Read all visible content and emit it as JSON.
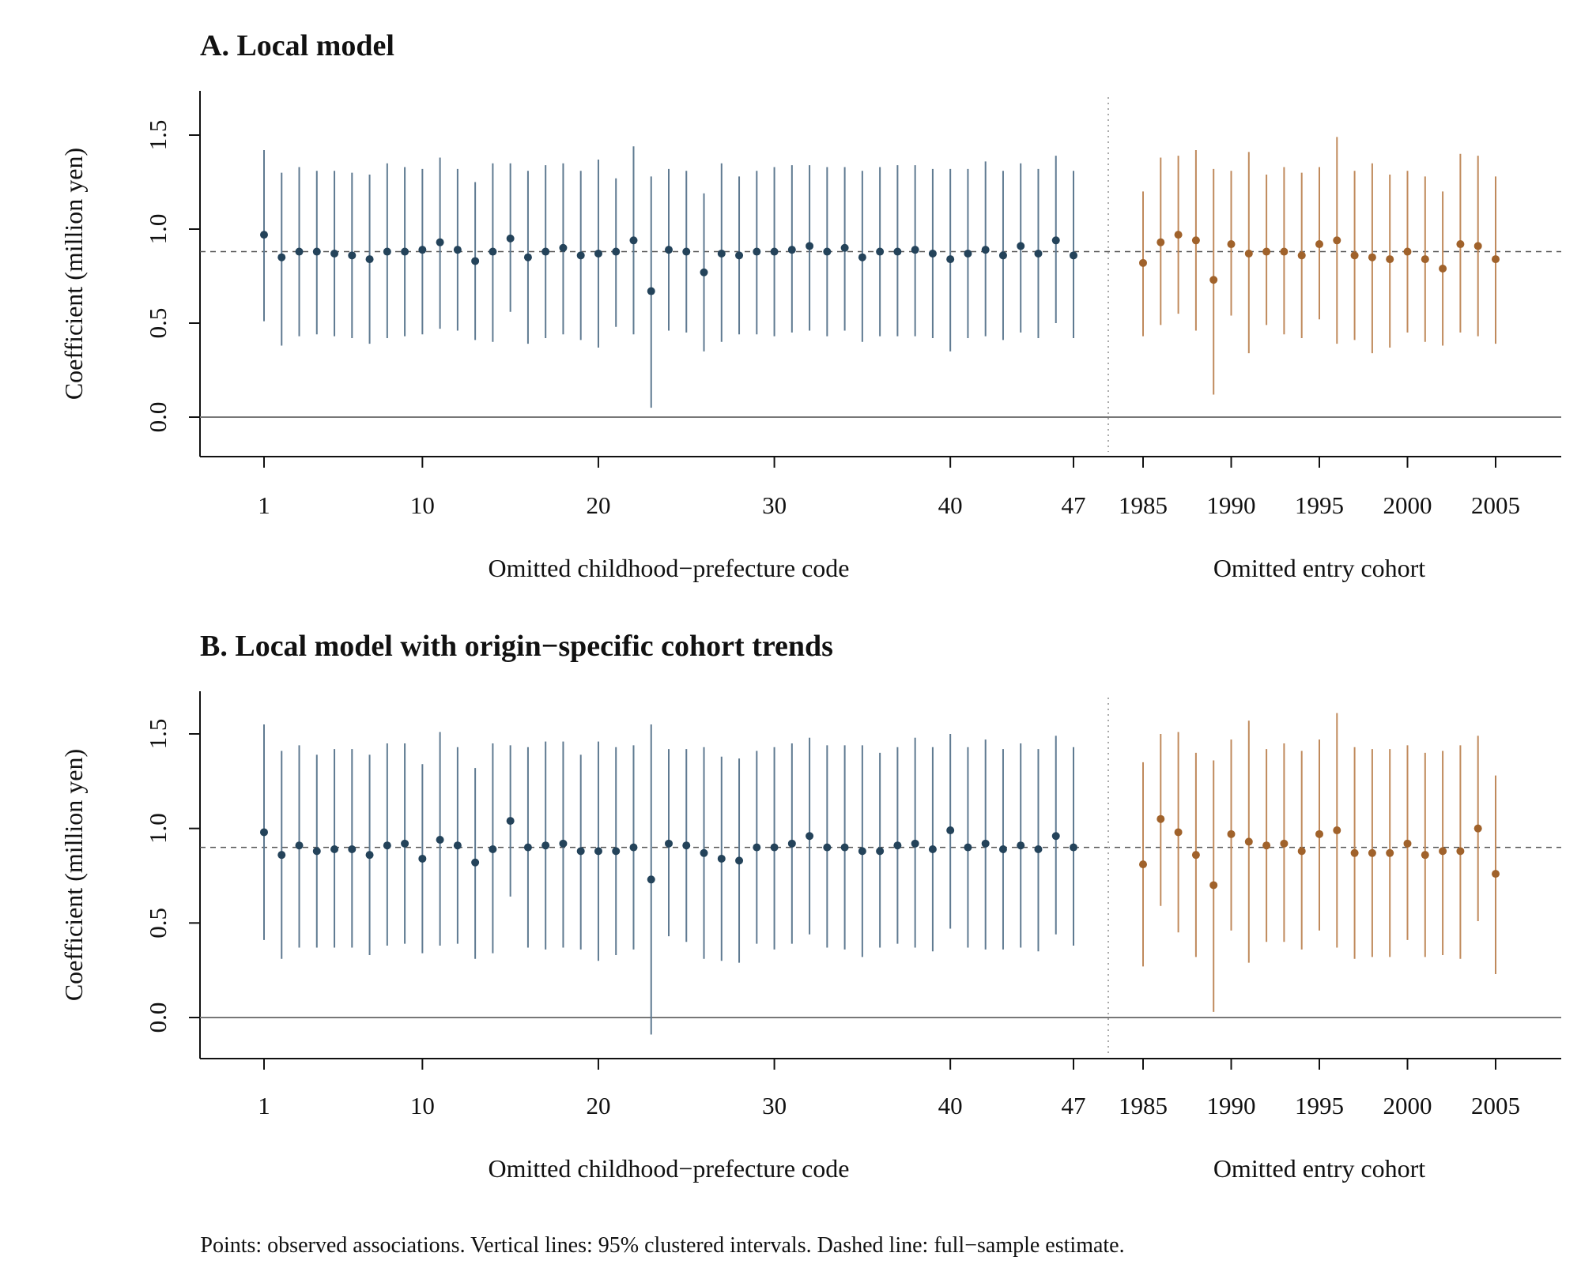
{
  "caption": "Points: observed associations. Vertical lines: 95% clustered intervals. Dashed line: full−sample estimate.",
  "colors": {
    "prefecture": "#24435a",
    "prefecture_line": "#5f7a91",
    "cohort": "#a0622b",
    "cohort_line": "#c08a5c",
    "axis": "#111111",
    "zero": "#777777",
    "ref": "#555555"
  },
  "chart_data": [
    {
      "type": "scatter",
      "title": "A. Local model",
      "ylabel": "Coefficient (million yen)",
      "ylim": [
        -0.2,
        1.72
      ],
      "yticks": [
        0.0,
        0.5,
        1.0,
        1.5
      ],
      "ytick_labels": [
        "0.0",
        "0.5",
        "1.0",
        "1.5"
      ],
      "reference": 0.88,
      "grid": false,
      "prefecture": {
        "xlabel": "Omitted childhood−prefecture code",
        "xticks": [
          1,
          10,
          20,
          30,
          40,
          47
        ],
        "xtick_labels": [
          "1",
          "10",
          "20",
          "30",
          "40",
          "47"
        ],
        "x": [
          1,
          2,
          3,
          4,
          5,
          6,
          7,
          8,
          9,
          10,
          11,
          12,
          13,
          14,
          15,
          16,
          17,
          18,
          19,
          20,
          21,
          22,
          23,
          24,
          25,
          26,
          27,
          28,
          29,
          30,
          31,
          32,
          33,
          34,
          35,
          36,
          37,
          38,
          39,
          40,
          41,
          42,
          43,
          44,
          45,
          46,
          47
        ],
        "y": [
          0.97,
          0.85,
          0.88,
          0.88,
          0.87,
          0.86,
          0.84,
          0.88,
          0.88,
          0.89,
          0.93,
          0.89,
          0.83,
          0.88,
          0.95,
          0.85,
          0.88,
          0.9,
          0.86,
          0.87,
          0.88,
          0.94,
          0.67,
          0.89,
          0.88,
          0.77,
          0.87,
          0.86,
          0.88,
          0.88,
          0.89,
          0.91,
          0.88,
          0.9,
          0.85,
          0.88,
          0.88,
          0.89,
          0.87,
          0.84,
          0.87,
          0.89,
          0.86,
          0.91,
          0.87,
          0.94,
          0.86
        ],
        "lo": [
          0.51,
          0.38,
          0.43,
          0.44,
          0.43,
          0.42,
          0.39,
          0.42,
          0.43,
          0.44,
          0.47,
          0.46,
          0.41,
          0.4,
          0.56,
          0.39,
          0.42,
          0.44,
          0.41,
          0.37,
          0.48,
          0.44,
          0.05,
          0.46,
          0.45,
          0.35,
          0.4,
          0.44,
          0.44,
          0.43,
          0.45,
          0.46,
          0.43,
          0.46,
          0.4,
          0.43,
          0.43,
          0.43,
          0.42,
          0.35,
          0.42,
          0.43,
          0.41,
          0.45,
          0.42,
          0.5,
          0.42
        ],
        "hi": [
          1.42,
          1.3,
          1.33,
          1.31,
          1.31,
          1.3,
          1.29,
          1.35,
          1.33,
          1.32,
          1.38,
          1.32,
          1.25,
          1.35,
          1.35,
          1.31,
          1.34,
          1.35,
          1.31,
          1.37,
          1.27,
          1.44,
          1.28,
          1.32,
          1.31,
          1.19,
          1.35,
          1.28,
          1.31,
          1.33,
          1.34,
          1.34,
          1.33,
          1.33,
          1.31,
          1.33,
          1.34,
          1.34,
          1.32,
          1.32,
          1.32,
          1.36,
          1.31,
          1.35,
          1.32,
          1.39,
          1.31
        ]
      },
      "cohort": {
        "xlabel": "Omitted entry cohort",
        "xticks": [
          1985,
          1990,
          1995,
          2000,
          2005
        ],
        "xtick_labels": [
          "1985",
          "1990",
          "1995",
          "2000",
          "2005"
        ],
        "x": [
          1985,
          1986,
          1987,
          1988,
          1989,
          1990,
          1991,
          1992,
          1993,
          1994,
          1995,
          1996,
          1997,
          1998,
          1999,
          2000,
          2001,
          2002,
          2003,
          2004,
          2005
        ],
        "y": [
          0.82,
          0.93,
          0.97,
          0.94,
          0.73,
          0.92,
          0.87,
          0.88,
          0.88,
          0.86,
          0.92,
          0.94,
          0.86,
          0.85,
          0.84,
          0.88,
          0.84,
          0.79,
          0.92,
          0.91,
          0.84
        ],
        "lo": [
          0.43,
          0.49,
          0.55,
          0.46,
          0.12,
          0.54,
          0.34,
          0.49,
          0.44,
          0.42,
          0.52,
          0.39,
          0.41,
          0.34,
          0.37,
          0.45,
          0.4,
          0.38,
          0.45,
          0.43,
          0.39
        ],
        "hi": [
          1.2,
          1.38,
          1.39,
          1.42,
          1.32,
          1.31,
          1.41,
          1.29,
          1.33,
          1.3,
          1.33,
          1.49,
          1.31,
          1.35,
          1.29,
          1.31,
          1.28,
          1.2,
          1.4,
          1.39,
          1.28
        ]
      }
    },
    {
      "type": "scatter",
      "title": "B. Local model with origin−specific cohort trends",
      "ylabel": "Coefficient (million yen)",
      "ylim": [
        -0.2,
        1.72
      ],
      "yticks": [
        0.0,
        0.5,
        1.0,
        1.5
      ],
      "ytick_labels": [
        "0.0",
        "0.5",
        "1.0",
        "1.5"
      ],
      "reference": 0.9,
      "grid": false,
      "prefecture": {
        "xlabel": "Omitted childhood−prefecture code",
        "xticks": [
          1,
          10,
          20,
          30,
          40,
          47
        ],
        "xtick_labels": [
          "1",
          "10",
          "20",
          "30",
          "40",
          "47"
        ],
        "x": [
          1,
          2,
          3,
          4,
          5,
          6,
          7,
          8,
          9,
          10,
          11,
          12,
          13,
          14,
          15,
          16,
          17,
          18,
          19,
          20,
          21,
          22,
          23,
          24,
          25,
          26,
          27,
          28,
          29,
          30,
          31,
          32,
          33,
          34,
          35,
          36,
          37,
          38,
          39,
          40,
          41,
          42,
          43,
          44,
          45,
          46,
          47
        ],
        "y": [
          0.98,
          0.86,
          0.91,
          0.88,
          0.89,
          0.89,
          0.86,
          0.91,
          0.92,
          0.84,
          0.94,
          0.91,
          0.82,
          0.89,
          1.04,
          0.9,
          0.91,
          0.92,
          0.88,
          0.88,
          0.88,
          0.9,
          0.73,
          0.92,
          0.91,
          0.87,
          0.84,
          0.83,
          0.9,
          0.9,
          0.92,
          0.96,
          0.9,
          0.9,
          0.88,
          0.88,
          0.91,
          0.92,
          0.89,
          0.99,
          0.9,
          0.92,
          0.89,
          0.91,
          0.89,
          0.96,
          0.9
        ],
        "lo": [
          0.41,
          0.31,
          0.37,
          0.37,
          0.37,
          0.37,
          0.33,
          0.38,
          0.39,
          0.34,
          0.38,
          0.39,
          0.31,
          0.34,
          0.64,
          0.37,
          0.36,
          0.37,
          0.36,
          0.3,
          0.33,
          0.36,
          -0.09,
          0.43,
          0.4,
          0.31,
          0.3,
          0.29,
          0.39,
          0.36,
          0.39,
          0.44,
          0.37,
          0.36,
          0.32,
          0.37,
          0.39,
          0.37,
          0.35,
          0.47,
          0.37,
          0.36,
          0.36,
          0.37,
          0.35,
          0.44,
          0.38
        ],
        "hi": [
          1.55,
          1.41,
          1.44,
          1.39,
          1.42,
          1.42,
          1.39,
          1.45,
          1.45,
          1.34,
          1.51,
          1.43,
          1.32,
          1.45,
          1.44,
          1.43,
          1.46,
          1.46,
          1.39,
          1.46,
          1.43,
          1.44,
          1.55,
          1.42,
          1.42,
          1.43,
          1.38,
          1.37,
          1.41,
          1.43,
          1.45,
          1.48,
          1.44,
          1.44,
          1.44,
          1.4,
          1.43,
          1.48,
          1.43,
          1.5,
          1.43,
          1.47,
          1.42,
          1.45,
          1.42,
          1.49,
          1.43
        ]
      },
      "cohort": {
        "xlabel": "Omitted entry cohort",
        "xticks": [
          1985,
          1990,
          1995,
          2000,
          2005
        ],
        "xtick_labels": [
          "1985",
          "1990",
          "1995",
          "2000",
          "2005"
        ],
        "x": [
          1985,
          1986,
          1987,
          1988,
          1989,
          1990,
          1991,
          1992,
          1993,
          1994,
          1995,
          1996,
          1997,
          1998,
          1999,
          2000,
          2001,
          2002,
          2003,
          2004,
          2005
        ],
        "y": [
          0.81,
          1.05,
          0.98,
          0.86,
          0.7,
          0.97,
          0.93,
          0.91,
          0.92,
          0.88,
          0.97,
          0.99,
          0.87,
          0.87,
          0.87,
          0.92,
          0.86,
          0.88,
          0.88,
          1.0,
          0.76
        ],
        "lo": [
          0.27,
          0.59,
          0.45,
          0.32,
          0.03,
          0.46,
          0.29,
          0.4,
          0.4,
          0.36,
          0.46,
          0.37,
          0.31,
          0.32,
          0.32,
          0.41,
          0.32,
          0.33,
          0.31,
          0.51,
          0.23
        ],
        "hi": [
          1.35,
          1.5,
          1.51,
          1.4,
          1.36,
          1.47,
          1.57,
          1.42,
          1.45,
          1.41,
          1.47,
          1.61,
          1.43,
          1.42,
          1.42,
          1.44,
          1.4,
          1.41,
          1.44,
          1.49,
          1.28
        ]
      }
    }
  ]
}
